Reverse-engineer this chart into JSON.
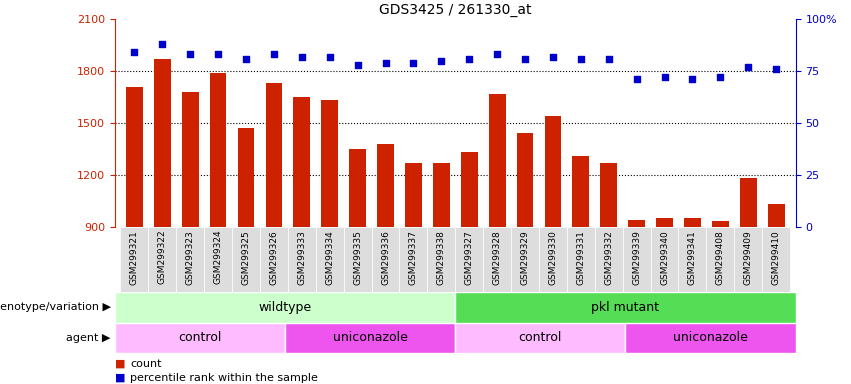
{
  "title": "GDS3425 / 261330_at",
  "samples": [
    "GSM299321",
    "GSM299322",
    "GSM299323",
    "GSM299324",
    "GSM299325",
    "GSM299326",
    "GSM299333",
    "GSM299334",
    "GSM299335",
    "GSM299336",
    "GSM299337",
    "GSM299338",
    "GSM299327",
    "GSM299328",
    "GSM299329",
    "GSM299330",
    "GSM299331",
    "GSM299332",
    "GSM299339",
    "GSM299340",
    "GSM299341",
    "GSM299408",
    "GSM299409",
    "GSM299410"
  ],
  "counts": [
    1710,
    1870,
    1680,
    1790,
    1470,
    1730,
    1650,
    1630,
    1350,
    1380,
    1270,
    1270,
    1330,
    1670,
    1440,
    1540,
    1310,
    1270,
    940,
    950,
    950,
    930,
    1180,
    1030
  ],
  "percentiles": [
    84,
    88,
    83,
    83,
    81,
    83,
    82,
    82,
    78,
    79,
    79,
    80,
    81,
    83,
    81,
    82,
    81,
    81,
    71,
    72,
    71,
    72,
    77,
    76
  ],
  "bar_color": "#cc2200",
  "dot_color": "#0000cc",
  "ylim_left": [
    900,
    2100
  ],
  "ylim_right": [
    0,
    100
  ],
  "yticks_left": [
    900,
    1200,
    1500,
    1800,
    2100
  ],
  "yticks_right": [
    0,
    25,
    50,
    75,
    100
  ],
  "yticklabels_right": [
    "0",
    "25",
    "50",
    "75",
    "100%"
  ],
  "grid_lines": [
    1200,
    1500,
    1800
  ],
  "genotype_groups": [
    {
      "label": "wildtype",
      "start": 0,
      "end": 11,
      "color": "#ccffcc"
    },
    {
      "label": "pkl mutant",
      "start": 12,
      "end": 23,
      "color": "#55dd55"
    }
  ],
  "agent_groups": [
    {
      "label": "control",
      "start": 0,
      "end": 5,
      "color": "#ffbbff"
    },
    {
      "label": "uniconazole",
      "start": 6,
      "end": 11,
      "color": "#ee55ee"
    },
    {
      "label": "control",
      "start": 12,
      "end": 17,
      "color": "#ffbbff"
    },
    {
      "label": "uniconazole",
      "start": 18,
      "end": 23,
      "color": "#ee55ee"
    }
  ],
  "legend_count_label": "count",
  "legend_percentile_label": "percentile rank within the sample",
  "row_label_genotype": "genotype/variation",
  "row_label_agent": "agent",
  "bar_width": 0.6,
  "background_color": "#ffffff",
  "tick_area_color": "#dddddd"
}
